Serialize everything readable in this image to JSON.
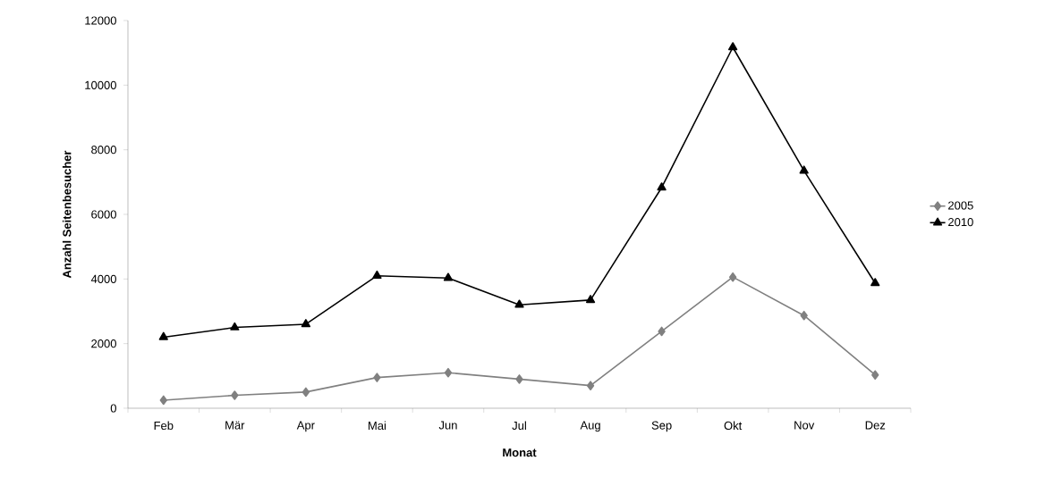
{
  "chart_data": {
    "type": "line",
    "xlabel": "Monat",
    "ylabel": "Anzahl Seitenbesucher",
    "categories": [
      "Feb",
      "Mär",
      "Apr",
      "Mai",
      "Jun",
      "Jul",
      "Aug",
      "Sep",
      "Okt",
      "Nov",
      "Dez"
    ],
    "series": [
      {
        "name": "2005",
        "color": "#808080",
        "marker": "diamond",
        "values": [
          250,
          400,
          500,
          950,
          1100,
          900,
          700,
          2380,
          4060,
          2870,
          1030
        ]
      },
      {
        "name": "2010",
        "color": "#000000",
        "marker": "triangle",
        "values": [
          2200,
          2500,
          2600,
          4100,
          4030,
          3200,
          3350,
          6830,
          11170,
          7350,
          3870
        ]
      }
    ],
    "ylim": [
      0,
      12000
    ],
    "yticks": [
      0,
      2000,
      4000,
      6000,
      8000,
      10000,
      12000
    ],
    "grid": false,
    "legend": "right",
    "line_style": "solid"
  }
}
